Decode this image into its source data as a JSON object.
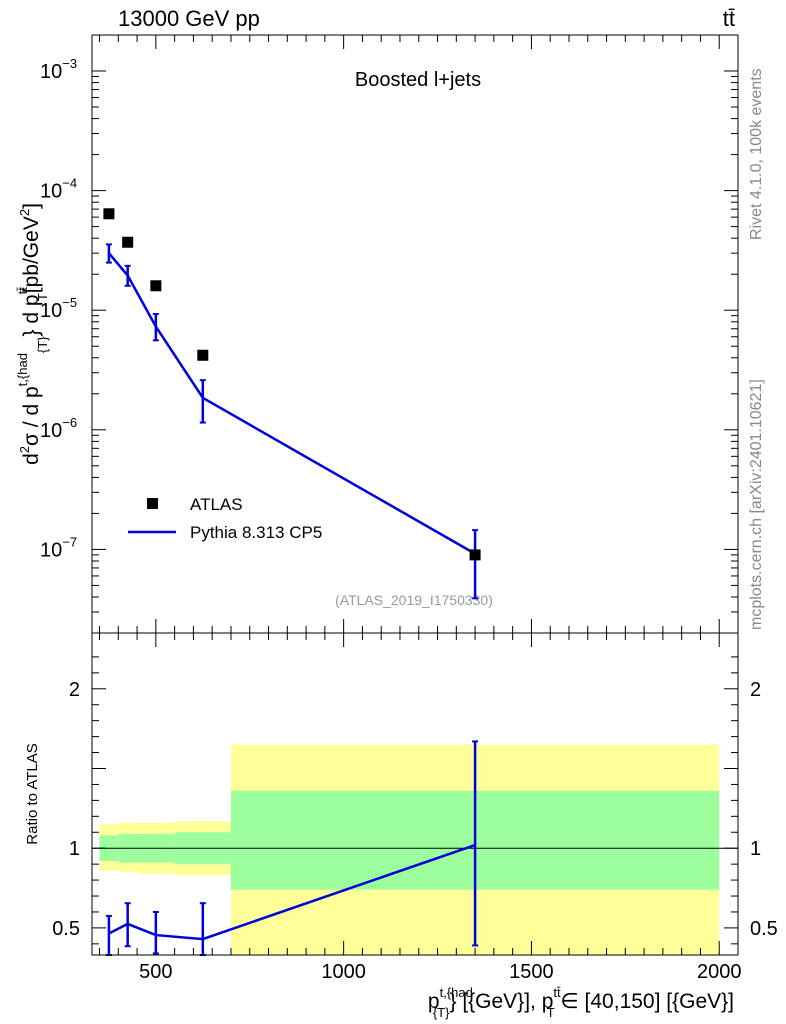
{
  "header": {
    "left_label": "13000 GeV pp",
    "right_label": "tt̄",
    "side_label_top": "Rivet 4.1.0,  100k events",
    "side_label_bottom": "mcplots.cern.ch [arXiv:2401.10621]"
  },
  "chart_data": [
    {
      "type": "scatter",
      "panel": "main",
      "title": "Boosted l+jets",
      "analysis_label": "(ATLAS_2019_I1750330)",
      "ylabel": "d²σ / d p^{t,{had}}_{T}} d p_T^{tt̄}[pb/GeV²]",
      "yscale": "log",
      "ylim": [
        2e-08,
        0.002
      ],
      "xlim": [
        330,
        2050
      ],
      "y_ticks": [
        {
          "value": 1e-07,
          "label_base": "10",
          "label_exp": "−7"
        },
        {
          "value": 1e-06,
          "label_base": "10",
          "label_exp": "−6"
        },
        {
          "value": 1e-05,
          "label_base": "10",
          "label_exp": "−5"
        },
        {
          "value": 0.0001,
          "label_base": "10",
          "label_exp": "−4"
        },
        {
          "value": 0.001,
          "label_base": "10",
          "label_exp": "−3"
        }
      ],
      "legend": {
        "position": "lower-left",
        "entries": [
          {
            "name": "ATLAS",
            "style": "square-marker"
          },
          {
            "name": "Pythia 8.313 CP5",
            "style": "line"
          }
        ]
      },
      "series": [
        {
          "name": "ATLAS",
          "color": "#000000",
          "points": [
            {
              "x": 375,
              "y": 6.4e-05
            },
            {
              "x": 425,
              "y": 3.7e-05
            },
            {
              "x": 500,
              "y": 1.6e-05
            },
            {
              "x": 625,
              "y": 4.2e-06
            },
            {
              "x": 1350,
              "y": 9e-08
            }
          ]
        },
        {
          "name": "Pythia 8.313 CP5",
          "color": "#0000dd",
          "points": [
            {
              "x": 375,
              "y": 3e-05,
              "ylo": 2.5e-05,
              "yhi": 3.55e-05
            },
            {
              "x": 425,
              "y": 1.95e-05,
              "ylo": 1.6e-05,
              "yhi": 2.35e-05
            },
            {
              "x": 500,
              "y": 7.3e-06,
              "ylo": 5.6e-06,
              "yhi": 9.3e-06
            },
            {
              "x": 625,
              "y": 1.85e-06,
              "ylo": 1.15e-06,
              "yhi": 2.6e-06
            },
            {
              "x": 1350,
              "y": 9.2e-08,
              "ylo": 3.9e-08,
              "yhi": 1.45e-07
            }
          ]
        }
      ]
    },
    {
      "type": "line",
      "panel": "ratio",
      "ylabel": "Ratio to ATLAS",
      "xlabel": "p^{t,{had}}_{T}} [{GeV}], p_T^{tt̄} ∈ [40,150] [{GeV}]",
      "ylim": [
        0.33,
        2.35
      ],
      "xlim": [
        330,
        2050
      ],
      "x_ticks": [
        500,
        1000,
        1500,
        2000
      ],
      "y_ticks": [
        0.5,
        1,
        2
      ],
      "uncertainty_bands": [
        {
          "x_lo": 350,
          "x_hi": 400,
          "inner_lo": 0.92,
          "inner_hi": 1.08,
          "outer_lo": 0.86,
          "outer_hi": 1.15
        },
        {
          "x_lo": 400,
          "x_hi": 450,
          "inner_lo": 0.91,
          "inner_hi": 1.09,
          "outer_lo": 0.85,
          "outer_hi": 1.16
        },
        {
          "x_lo": 450,
          "x_hi": 550,
          "inner_lo": 0.91,
          "inner_hi": 1.09,
          "outer_lo": 0.84,
          "outer_hi": 1.16
        },
        {
          "x_lo": 550,
          "x_hi": 700,
          "inner_lo": 0.9,
          "inner_hi": 1.1,
          "outer_lo": 0.83,
          "outer_hi": 1.17
        },
        {
          "x_lo": 700,
          "x_hi": 2000,
          "inner_lo": 0.74,
          "inner_hi": 1.36,
          "outer_lo": 0.0,
          "outer_hi": 1.65
        }
      ],
      "series": [
        {
          "name": "Pythia 8.313 CP5",
          "color": "#0000dd",
          "points": [
            {
              "x": 375,
              "y": 0.465,
              "ylo": 0.33,
              "yhi": 0.575
            },
            {
              "x": 425,
              "y": 0.525,
              "ylo": 0.385,
              "yhi": 0.655
            },
            {
              "x": 500,
              "y": 0.455,
              "ylo": 0.34,
              "yhi": 0.6
            },
            {
              "x": 625,
              "y": 0.43,
              "ylo": 0.33,
              "yhi": 0.655
            },
            {
              "x": 1350,
              "y": 1.02,
              "ylo": 0.39,
              "yhi": 1.67
            }
          ]
        }
      ]
    }
  ],
  "colors": {
    "inner_band": "#9cfe9c",
    "outer_band": "#ffff99",
    "axis": "#000000",
    "side_label": "#888888",
    "analysis_label": "#999999"
  }
}
